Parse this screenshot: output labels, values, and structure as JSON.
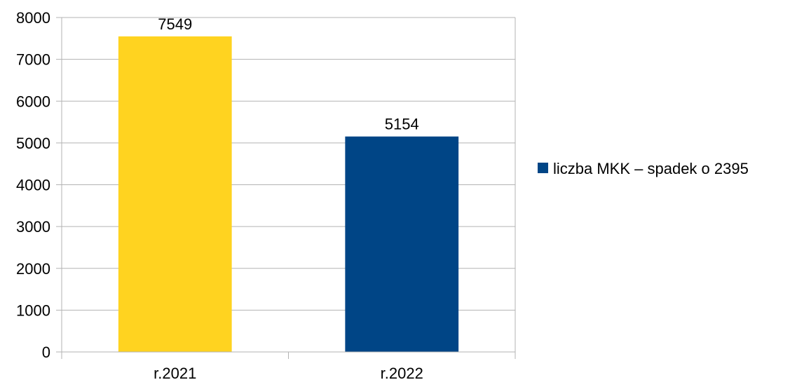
{
  "chart_data": {
    "type": "bar",
    "categories": [
      "r.2021",
      "r.2022"
    ],
    "series": [
      {
        "name": "liczba MKK – spadek o 2395",
        "values": [
          7549,
          5154
        ],
        "colors": [
          "#FFD320",
          "#004586"
        ]
      }
    ],
    "data_labels": [
      "7549",
      "5154"
    ],
    "ylim": [
      0,
      8000
    ],
    "yticks": [
      0,
      1000,
      2000,
      3000,
      4000,
      5000,
      6000,
      7000,
      8000
    ],
    "grid": true,
    "legend_position": "right",
    "legend_color": "#004586",
    "title": "",
    "xlabel": "",
    "ylabel": ""
  }
}
